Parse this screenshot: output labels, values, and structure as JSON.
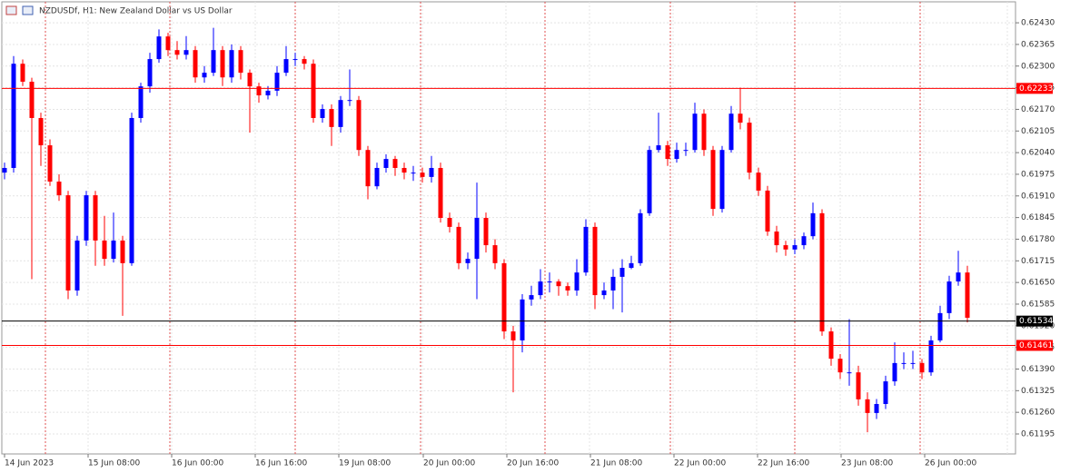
{
  "chart_data": {
    "type": "candlestick",
    "title": "NZDUSDf, H1:  New Zealand Dollar vs US Dollar",
    "up_color": "#0000ff",
    "down_color": "#ff0000",
    "grid": true,
    "ylim": [
      0.61135,
      0.62493
    ],
    "yticks": [
      {
        "value": 0.6243,
        "label": "0.62430"
      },
      {
        "value": 0.62365,
        "label": "0.62365"
      },
      {
        "value": 0.623,
        "label": "0.62300"
      },
      {
        "value": 0.62235,
        "label": "0.62235"
      },
      {
        "value": 0.6217,
        "label": "0.62170"
      },
      {
        "value": 0.62105,
        "label": "0.62105"
      },
      {
        "value": 0.6204,
        "label": "0.62040"
      },
      {
        "value": 0.61975,
        "label": "0.61975"
      },
      {
        "value": 0.6191,
        "label": "0.61910"
      },
      {
        "value": 0.61845,
        "label": "0.61845"
      },
      {
        "value": 0.6178,
        "label": "0.61780"
      },
      {
        "value": 0.61715,
        "label": "0.61715"
      },
      {
        "value": 0.6165,
        "label": "0.61650"
      },
      {
        "value": 0.61585,
        "label": "0.61585"
      },
      {
        "value": 0.6152,
        "label": "0.61520"
      },
      {
        "value": 0.61455,
        "label": "0.61455"
      },
      {
        "value": 0.6139,
        "label": "0.61390"
      },
      {
        "value": 0.61325,
        "label": "0.61325"
      },
      {
        "value": 0.6126,
        "label": "0.61260"
      },
      {
        "value": 0.61195,
        "label": "0.61195"
      }
    ],
    "x_labels": [
      "14 Jun 2023",
      "15 Jun 08:00",
      "16 Jun 00:00",
      "16 Jun 16:00",
      "19 Jun 08:00",
      "20 Jun 00:00",
      "20 Jun 16:00",
      "21 Jun 08:00",
      "22 Jun 00:00",
      "22 Jun 16:00",
      "23 Jun 08:00",
      "26 Jun 00:00"
    ],
    "price_lines": [
      {
        "value": 0.62233,
        "color": "#ff0000"
      },
      {
        "value": 0.61461,
        "color": "#ff0000"
      },
      {
        "value": 0.61534,
        "color": "#000000"
      }
    ],
    "open": [
      0.6198,
      0.61994,
      0.62307,
      0.62253,
      0.62144,
      0.62062,
      0.61953,
      0.61912,
      0.61626,
      0.61776,
      0.61912,
      0.61776,
      0.61721,
      0.61776,
      0.61708,
      0.62144,
      0.62239,
      0.62321,
      0.62389,
      0.62348,
      0.62334,
      0.62348,
      0.62266,
      0.6228,
      0.62348,
      0.62266,
      0.62348,
      0.6228,
      0.62239,
      0.62212,
      0.62226,
      0.6228,
      0.62321,
      0.62321,
      0.62307,
      0.62144,
      0.62171,
      0.62117,
      0.62198,
      0.62198,
      0.62048,
      0.61939,
      0.61994,
      0.62021,
      0.61994,
      0.6198,
      0.6198,
      0.61967,
      0.61994,
      0.61844,
      0.61817,
      0.61708,
      0.61721,
      0.61844,
      0.61762,
      0.61708,
      0.61503,
      0.61476,
      0.61599,
      0.61612,
      0.61653,
      0.61653,
      0.61639,
      0.61626,
      0.6168,
      0.61817,
      0.61612,
      0.61626,
      0.61667,
      0.61694,
      0.61708,
      0.61858,
      0.62048,
      0.62062,
      0.62021,
      0.62048,
      0.62048,
      0.62157,
      0.62048,
      0.61871,
      0.62048,
      0.62157,
      0.6213,
      0.6198,
      0.61926,
      0.61803,
      0.61762,
      0.61749,
      0.61762,
      0.61789,
      0.61858,
      0.61503,
      0.61421,
      0.6138,
      0.6138,
      0.61299,
      0.61258,
      0.61285,
      0.61353,
      0.61408,
      0.61408,
      0.61408,
      0.6138,
      0.61476,
      0.61558,
      0.61653,
      0.6168
    ],
    "high": [
      0.6201,
      0.6233,
      0.6232,
      0.62265,
      0.6216,
      0.6208,
      0.61975,
      0.61925,
      0.6179,
      0.61925,
      0.61925,
      0.6185,
      0.6186,
      0.6179,
      0.6216,
      0.6225,
      0.6234,
      0.6241,
      0.624,
      0.62375,
      0.6239,
      0.6236,
      0.623,
      0.62415,
      0.6236,
      0.62365,
      0.6236,
      0.6229,
      0.6225,
      0.6224,
      0.623,
      0.6236,
      0.6234,
      0.6233,
      0.6232,
      0.62185,
      0.62185,
      0.6221,
      0.6229,
      0.6221,
      0.6206,
      0.6201,
      0.62035,
      0.6203,
      0.6201,
      0.62,
      0.61995,
      0.6203,
      0.6201,
      0.6186,
      0.6183,
      0.6174,
      0.6195,
      0.6186,
      0.6178,
      0.6172,
      0.6152,
      0.61615,
      0.6164,
      0.6169,
      0.6168,
      0.6166,
      0.6165,
      0.6172,
      0.6184,
      0.6183,
      0.6165,
      0.6169,
      0.6172,
      0.6173,
      0.6187,
      0.6206,
      0.6216,
      0.62075,
      0.6207,
      0.6207,
      0.6219,
      0.6217,
      0.6206,
      0.6206,
      0.6218,
      0.62235,
      0.62145,
      0.61995,
      0.6194,
      0.6182,
      0.61775,
      0.6178,
      0.618,
      0.6189,
      0.6187,
      0.61515,
      0.61435,
      0.6154,
      0.614,
      0.6132,
      0.613,
      0.6137,
      0.6147,
      0.6144,
      0.61445,
      0.6142,
      0.6149,
      0.6158,
      0.6167,
      0.61745,
      0.617
    ],
    "low": [
      0.6196,
      0.6198,
      0.6224,
      0.6166,
      0.62,
      0.6194,
      0.61895,
      0.616,
      0.6161,
      0.6176,
      0.617,
      0.617,
      0.6171,
      0.6155,
      0.617,
      0.6213,
      0.6222,
      0.6231,
      0.6233,
      0.6232,
      0.6232,
      0.6225,
      0.6225,
      0.6227,
      0.6224,
      0.6225,
      0.6226,
      0.621,
      0.6219,
      0.622,
      0.6221,
      0.6227,
      0.623,
      0.6229,
      0.6213,
      0.6213,
      0.6206,
      0.621,
      0.6218,
      0.6203,
      0.619,
      0.6193,
      0.6198,
      0.6197,
      0.6196,
      0.61955,
      0.6195,
      0.6195,
      0.6183,
      0.618,
      0.6169,
      0.6169,
      0.616,
      0.6174,
      0.6169,
      0.6148,
      0.6132,
      0.6144,
      0.6158,
      0.616,
      0.6162,
      0.6161,
      0.6161,
      0.6161,
      0.6167,
      0.6157,
      0.616,
      0.6157,
      0.6156,
      0.6169,
      0.617,
      0.6185,
      0.6204,
      0.62,
      0.6201,
      0.6203,
      0.6204,
      0.6203,
      0.6185,
      0.6186,
      0.6204,
      0.6211,
      0.6196,
      0.6191,
      0.6179,
      0.6174,
      0.6173,
      0.61735,
      0.6175,
      0.6178,
      0.6149,
      0.614,
      0.6136,
      0.6134,
      0.6128,
      0.612,
      0.6124,
      0.6127,
      0.6134,
      0.6139,
      0.6139,
      0.6136,
      0.6137,
      0.6147,
      0.6154,
      0.6164,
      0.6153
    ],
    "close": [
      0.61994,
      0.62307,
      0.62253,
      0.62144,
      0.62062,
      0.61953,
      0.61912,
      0.61626,
      0.61776,
      0.61912,
      0.61776,
      0.61721,
      0.61776,
      0.61708,
      0.62144,
      0.62239,
      0.62321,
      0.62389,
      0.62348,
      0.62334,
      0.62348,
      0.62266,
      0.6228,
      0.62348,
      0.62266,
      0.62348,
      0.6228,
      0.62239,
      0.62212,
      0.62226,
      0.6228,
      0.62321,
      0.62321,
      0.62307,
      0.62144,
      0.62171,
      0.62117,
      0.62198,
      0.62198,
      0.62048,
      0.61939,
      0.61994,
      0.62021,
      0.61994,
      0.6198,
      0.6198,
      0.61967,
      0.61994,
      0.61844,
      0.61817,
      0.61708,
      0.61721,
      0.61844,
      0.61762,
      0.61708,
      0.61503,
      0.61476,
      0.61599,
      0.61612,
      0.61653,
      0.61653,
      0.61639,
      0.61626,
      0.6168,
      0.61817,
      0.61612,
      0.61626,
      0.61667,
      0.61694,
      0.61708,
      0.61858,
      0.62048,
      0.62062,
      0.62021,
      0.62048,
      0.62048,
      0.62157,
      0.62048,
      0.61871,
      0.62048,
      0.62157,
      0.6213,
      0.6198,
      0.61926,
      0.61803,
      0.61762,
      0.61749,
      0.61762,
      0.61789,
      0.61858,
      0.61503,
      0.61421,
      0.6138,
      0.6138,
      0.61299,
      0.61258,
      0.61285,
      0.61353,
      0.61408,
      0.61408,
      0.61408,
      0.6138,
      0.61476,
      0.61558,
      0.61653,
      0.6168,
      0.61544
    ]
  }
}
